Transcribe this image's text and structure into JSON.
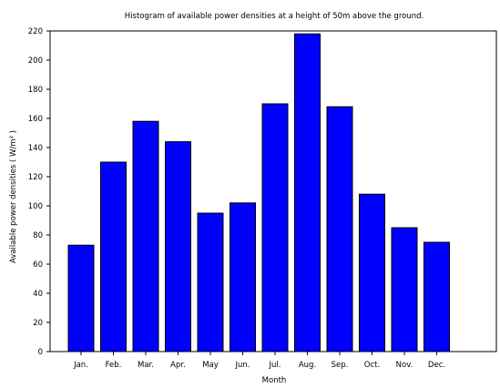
{
  "chart_data": {
    "type": "bar",
    "title": "Histogram of available power densities at a height of  50m above the ground.",
    "xlabel": "Month",
    "ylabel": "Available power densities ( W/m² )",
    "categories": [
      "Jan.",
      "Feb.",
      "Mar.",
      "Apr.",
      "May",
      "Jun.",
      "Jul.",
      "Aug.",
      "Sep.",
      "Oct.",
      "Nov.",
      "Dec."
    ],
    "values": [
      73,
      130,
      158,
      144,
      95,
      102,
      170,
      218,
      168,
      108,
      85,
      75
    ],
    "ylim": [
      0,
      220
    ],
    "yticks": [
      "0",
      "20",
      "40",
      "60",
      "80",
      "100",
      "120",
      "140",
      "160",
      "180",
      "200",
      "220"
    ],
    "bar_color": "#0000ff",
    "grid": false,
    "legend": "none"
  }
}
